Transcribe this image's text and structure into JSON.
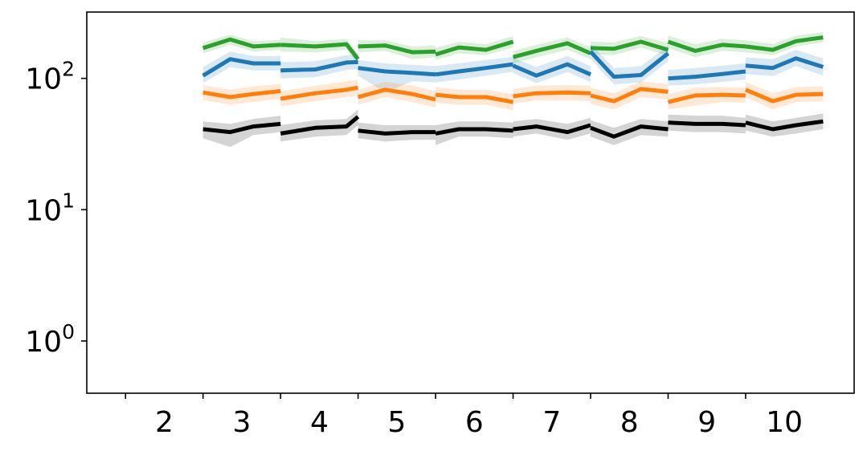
{
  "chart_data": {
    "type": "line",
    "title": "",
    "xlabel": "",
    "ylabel": "",
    "y_scale": "log",
    "ylim": [
      0.4,
      320
    ],
    "xlim": [
      1,
      10.9
    ],
    "x_ticks": [
      1.5,
      2.5,
      3.5,
      4.5,
      5.5,
      6.5,
      7.5,
      8.5,
      9.5
    ],
    "x_tick_labels": [
      {
        "x": 2,
        "label": "2"
      },
      {
        "x": 3,
        "label": "3"
      },
      {
        "x": 4,
        "label": "4"
      },
      {
        "x": 5,
        "label": "5"
      },
      {
        "x": 6,
        "label": "6"
      },
      {
        "x": 7,
        "label": "7"
      },
      {
        "x": 8,
        "label": "8"
      },
      {
        "x": 9,
        "label": "9"
      },
      {
        "x": 10,
        "label": "10"
      }
    ],
    "y_ticks": [
      {
        "value": 1,
        "base": "10",
        "exp": "0"
      },
      {
        "value": 10,
        "base": "10",
        "exp": "1"
      },
      {
        "value": 100,
        "base": "10",
        "exp": "2"
      }
    ],
    "grid": false,
    "legend": "none",
    "series": [
      {
        "color": "#2ca02c",
        "segments": [
          {
            "x": [
              2.5,
              2.85,
              3.15,
              3.5
            ],
            "y": [
              170,
              198,
              175,
              180
            ],
            "lower": [
              155,
              180,
              160,
              165
            ],
            "upper": [
              188,
              215,
              192,
              196
            ]
          },
          {
            "x": [
              3.5,
              3.95,
              4.35,
              4.5
            ],
            "y": [
              180,
              175,
              182,
              140
            ],
            "lower": [
              160,
              158,
              165,
              128
            ],
            "upper": [
              205,
              192,
              200,
              155
            ]
          },
          {
            "x": [
              4.5,
              4.85,
              5.2,
              5.5
            ],
            "y": [
              175,
              178,
              158,
              160
            ],
            "lower": [
              158,
              162,
              140,
              145
            ],
            "upper": [
              195,
              195,
              175,
              178
            ]
          },
          {
            "x": [
              5.5,
              5.8,
              6.15,
              6.5
            ],
            "y": [
              152,
              172,
              165,
              190
            ],
            "lower": [
              138,
              155,
              150,
              172
            ],
            "upper": [
              170,
              190,
              182,
              210
            ]
          },
          {
            "x": [
              6.5,
              6.8,
              7.2,
              7.5
            ],
            "y": [
              145,
              162,
              185,
              155
            ],
            "lower": [
              130,
              145,
              165,
              140
            ],
            "upper": [
              162,
              180,
              205,
              172
            ]
          },
          {
            "x": [
              7.5,
              7.8,
              8.15,
              8.5
            ],
            "y": [
              170,
              168,
              190,
              165
            ],
            "lower": [
              152,
              150,
              172,
              148
            ],
            "upper": [
              190,
              188,
              210,
              185
            ]
          },
          {
            "x": [
              8.5,
              8.85,
              9.2,
              9.5
            ],
            "y": [
              190,
              162,
              180,
              175
            ],
            "lower": [
              170,
              145,
              162,
              158
            ],
            "upper": [
              212,
              182,
              200,
              195
            ]
          },
          {
            "x": [
              9.5,
              9.85,
              10.15,
              10.5
            ],
            "y": [
              175,
              165,
              192,
              205
            ],
            "lower": [
              158,
              150,
              175,
              188
            ],
            "upper": [
              195,
              183,
              212,
              225
            ]
          }
        ]
      },
      {
        "color": "#1f77b4",
        "segments": [
          {
            "x": [
              2.5,
              2.85,
              3.15,
              3.5
            ],
            "y": [
              105,
              140,
              130,
              130
            ],
            "lower": [
              92,
              122,
              115,
              115
            ],
            "upper": [
              122,
              160,
              148,
              148
            ]
          },
          {
            "x": [
              3.5,
              3.95,
              4.35,
              4.5
            ],
            "y": [
              115,
              117,
              132,
              133
            ],
            "lower": [
              100,
              102,
              116,
              118
            ],
            "upper": [
              133,
              135,
              150,
              152
            ]
          },
          {
            "x": [
              4.5,
              4.85,
              5.2,
              5.5
            ],
            "y": [
              120,
              113,
              110,
              107
            ],
            "lower": [
              105,
              78,
              95,
              93
            ],
            "upper": [
              138,
              130,
              127,
              124
            ]
          },
          {
            "x": [
              5.5,
              5.8,
              6.15,
              6.5
            ],
            "y": [
              107,
              113,
              120,
              128
            ],
            "lower": [
              93,
              98,
              105,
              112
            ],
            "upper": [
              124,
              130,
              138,
              146
            ]
          },
          {
            "x": [
              6.5,
              6.8,
              7.2,
              7.5
            ],
            "y": [
              125,
              105,
              128,
              107
            ],
            "lower": [
              110,
              92,
              112,
              94
            ],
            "upper": [
              143,
              122,
              148,
              124
            ]
          },
          {
            "x": [
              7.5,
              7.8,
              8.15,
              8.5
            ],
            "y": [
              160,
              103,
              106,
              155
            ],
            "lower": [
              140,
              90,
              93,
              135
            ],
            "upper": [
              182,
              120,
              124,
              178
            ]
          },
          {
            "x": [
              8.5,
              8.85,
              9.2,
              9.5
            ],
            "y": [
              100,
              103,
              108,
              113
            ],
            "lower": [
              88,
              90,
              94,
              98
            ],
            "upper": [
              116,
              120,
              125,
              130
            ]
          },
          {
            "x": [
              9.5,
              9.85,
              10.15,
              10.5
            ],
            "y": [
              125,
              120,
              142,
              122
            ],
            "lower": [
              108,
              104,
              124,
              105
            ],
            "upper": [
              145,
              140,
              165,
              142
            ]
          }
        ]
      },
      {
        "color": "#ff7f0e",
        "segments": [
          {
            "x": [
              2.5,
              2.85,
              3.15,
              3.5
            ],
            "y": [
              78,
              72,
              76,
              80
            ],
            "lower": [
              68,
              63,
              66,
              70
            ],
            "upper": [
              89,
              82,
              87,
              91
            ]
          },
          {
            "x": [
              3.5,
              3.95,
              4.35,
              4.5
            ],
            "y": [
              70,
              77,
              82,
              85
            ],
            "lower": [
              61,
              67,
              72,
              74
            ],
            "upper": [
              80,
              88,
              95,
              97
            ]
          },
          {
            "x": [
              4.5,
              4.85,
              5.2,
              5.5
            ],
            "y": [
              72,
              82,
              76,
              69
            ],
            "lower": [
              63,
              72,
              66,
              60
            ],
            "upper": [
              82,
              94,
              88,
              80
            ]
          },
          {
            "x": [
              5.5,
              5.8,
              6.15,
              6.5
            ],
            "y": [
              75,
              72,
              72,
              66
            ],
            "lower": [
              65,
              63,
              63,
              57
            ],
            "upper": [
              86,
              82,
              82,
              76
            ]
          },
          {
            "x": [
              6.5,
              6.8,
              7.2,
              7.5
            ],
            "y": [
              73,
              77,
              78,
              77
            ],
            "lower": [
              64,
              68,
              68,
              67
            ],
            "upper": [
              83,
              88,
              89,
              88
            ]
          },
          {
            "x": [
              7.5,
              7.8,
              8.15,
              8.5
            ],
            "y": [
              74,
              67,
              83,
              79
            ],
            "lower": [
              64,
              58,
              72,
              69
            ],
            "upper": [
              85,
              77,
              95,
              90
            ]
          },
          {
            "x": [
              8.5,
              8.85,
              9.2,
              9.5
            ],
            "y": [
              66,
              74,
              75,
              74
            ],
            "lower": [
              58,
              62,
              66,
              65
            ],
            "upper": [
              76,
              85,
              86,
              85
            ]
          },
          {
            "x": [
              9.5,
              9.85,
              10.15,
              10.5
            ],
            "y": [
              82,
              67,
              75,
              76
            ],
            "lower": [
              72,
              58,
              66,
              67
            ],
            "upper": [
              94,
              77,
              86,
              87
            ]
          }
        ]
      },
      {
        "color": "#000000",
        "segments": [
          {
            "x": [
              2.5,
              2.85,
              3.15,
              3.5
            ],
            "y": [
              41,
              39,
              43,
              45
            ],
            "lower": [
              35,
              30,
              37,
              39
            ],
            "upper": [
              47,
              45,
              49,
              52
            ]
          },
          {
            "x": [
              3.5,
              3.95,
              4.35,
              4.5
            ],
            "y": [
              38,
              42,
              43,
              51
            ],
            "lower": [
              33,
              36,
              37,
              44
            ],
            "upper": [
              44,
              48,
              49,
              58
            ]
          },
          {
            "x": [
              4.5,
              4.85,
              5.2,
              5.5
            ],
            "y": [
              40,
              38,
              39,
              39
            ],
            "lower": [
              35,
              33,
              34,
              34
            ],
            "upper": [
              46,
              44,
              44,
              44
            ]
          },
          {
            "x": [
              5.5,
              5.8,
              6.15,
              6.5
            ],
            "y": [
              38,
              41,
              41,
              40
            ],
            "lower": [
              31,
              36,
              36,
              35
            ],
            "upper": [
              44,
              47,
              47,
              46
            ]
          },
          {
            "x": [
              6.5,
              6.8,
              7.2,
              7.5
            ],
            "y": [
              41,
              43,
              39,
              44
            ],
            "lower": [
              36,
              38,
              34,
              38
            ],
            "upper": [
              47,
              49,
              45,
              50
            ]
          },
          {
            "x": [
              7.5,
              7.8,
              8.15,
              8.5
            ],
            "y": [
              42,
              36,
              43,
              41
            ],
            "lower": [
              36,
              31,
              37,
              36
            ],
            "upper": [
              48,
              42,
              49,
              47
            ]
          },
          {
            "x": [
              8.5,
              8.85,
              9.2,
              9.5
            ],
            "y": [
              46,
              45,
              45,
              44
            ],
            "lower": [
              40,
              39,
              39,
              38
            ],
            "upper": [
              53,
              52,
              52,
              50
            ]
          },
          {
            "x": [
              9.5,
              9.85,
              10.15,
              10.5
            ],
            "y": [
              46,
              41,
              44,
              47
            ],
            "lower": [
              40,
              36,
              38,
              41
            ],
            "upper": [
              53,
              47,
              50,
              54
            ]
          }
        ]
      }
    ]
  }
}
